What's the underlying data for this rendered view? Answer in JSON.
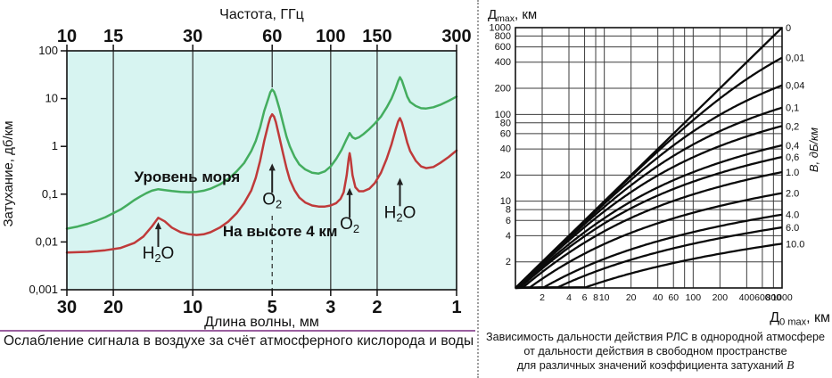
{
  "page": {
    "background": "#ffffff",
    "panel_divider_color": "#9e9e9e",
    "caption_rule_color": "#9a5f9f"
  },
  "left_chart": {
    "caption": "Ослабление сигнала в воздухе за счёт атмосферного кислорода и воды"
  },
  "right_chart": {
    "caption_lines": [
      "Зависимость дальности действия РЛС в однородной атмосфере",
      "от дальности действия в свободном пространстве",
      "для различных значений коэффициента затуханий"
    ],
    "caption_italic_suffix": "В"
  },
  "chart_data": [
    {
      "id": "atmospheric_attenuation",
      "type": "line",
      "plot_bg": "#d7f4f1",
      "grid_color": "#2a2a2a",
      "axis_color": "#111111",
      "x_top_axis": {
        "label": "Частота, ГГц",
        "scale": "log",
        "range": [
          10,
          300
        ],
        "ticks": [
          10,
          15,
          30,
          60,
          100,
          150,
          300
        ]
      },
      "x_bottom_axis": {
        "label": "Длина волны, мм",
        "ticks": [
          30,
          20,
          10,
          5,
          3,
          2,
          1
        ]
      },
      "y_axis": {
        "label": "Затухание, дб/км",
        "scale": "log",
        "range": [
          0.001,
          100
        ],
        "ticks": [
          100,
          10,
          1,
          0.1,
          0.01,
          0.001
        ],
        "tick_labels": [
          "100",
          "10",
          "1",
          "0,1",
          "0,01",
          "0,001"
        ]
      },
      "series": [
        {
          "name": "Уровень моря",
          "color": "#44ad5f",
          "points": [
            [
              10,
              0.019
            ],
            [
              11,
              0.021
            ],
            [
              12,
              0.024
            ],
            [
              13,
              0.028
            ],
            [
              14,
              0.033
            ],
            [
              15,
              0.04
            ],
            [
              16,
              0.048
            ],
            [
              17,
              0.06
            ],
            [
              18,
              0.075
            ],
            [
              19,
              0.09
            ],
            [
              20,
              0.105
            ],
            [
              21,
              0.118
            ],
            [
              22.2,
              0.127
            ],
            [
              23.5,
              0.122
            ],
            [
              25,
              0.116
            ],
            [
              27,
              0.112
            ],
            [
              29,
              0.11
            ],
            [
              31,
              0.112
            ],
            [
              33,
              0.118
            ],
            [
              35,
              0.13
            ],
            [
              38,
              0.16
            ],
            [
              41,
              0.21
            ],
            [
              44,
              0.3
            ],
            [
              47,
              0.45
            ],
            [
              50,
              0.8
            ],
            [
              52,
              1.3
            ],
            [
              54,
              2.5
            ],
            [
              56,
              5.5
            ],
            [
              58,
              10
            ],
            [
              59,
              13.5
            ],
            [
              60,
              15.5
            ],
            [
              61,
              14
            ],
            [
              62,
              11
            ],
            [
              64,
              6
            ],
            [
              66,
              3
            ],
            [
              68,
              1.6
            ],
            [
              70,
              1.0
            ],
            [
              73,
              0.6
            ],
            [
              76,
              0.42
            ],
            [
              80,
              0.33
            ],
            [
              85,
              0.28
            ],
            [
              90,
              0.27
            ],
            [
              95,
              0.3
            ],
            [
              100,
              0.38
            ],
            [
              105,
              0.55
            ],
            [
              110,
              0.85
            ],
            [
              114,
              1.3
            ],
            [
              118,
              1.9
            ],
            [
              121,
              1.55
            ],
            [
              124,
              1.45
            ],
            [
              128,
              1.55
            ],
            [
              133,
              1.8
            ],
            [
              140,
              2.3
            ],
            [
              147,
              3.0
            ],
            [
              155,
              4.2
            ],
            [
              163,
              6.5
            ],
            [
              170,
              10
            ],
            [
              176,
              16
            ],
            [
              180,
              23
            ],
            [
              183,
              28
            ],
            [
              186,
              24
            ],
            [
              190,
              17
            ],
            [
              195,
              11
            ],
            [
              200,
              8.5
            ],
            [
              210,
              7.0
            ],
            [
              220,
              6.3
            ],
            [
              230,
              6.2
            ],
            [
              245,
              6.6
            ],
            [
              260,
              7.4
            ],
            [
              280,
              9.0
            ],
            [
              300,
              11
            ]
          ]
        },
        {
          "name": "На высоте 4 км",
          "color": "#bf3a3a",
          "points": [
            [
              10,
              0.006
            ],
            [
              12,
              0.0062
            ],
            [
              14,
              0.0067
            ],
            [
              16,
              0.0075
            ],
            [
              18,
              0.0095
            ],
            [
              19.5,
              0.013
            ],
            [
              21,
              0.021
            ],
            [
              22.2,
              0.032
            ],
            [
              23.5,
              0.027
            ],
            [
              25,
              0.02
            ],
            [
              27,
              0.016
            ],
            [
              29,
              0.0145
            ],
            [
              31,
              0.014
            ],
            [
              33,
              0.0145
            ],
            [
              35,
              0.016
            ],
            [
              38,
              0.02
            ],
            [
              41,
              0.027
            ],
            [
              44,
              0.04
            ],
            [
              47,
              0.065
            ],
            [
              50,
              0.12
            ],
            [
              52,
              0.22
            ],
            [
              54,
              0.5
            ],
            [
              56,
              1.3
            ],
            [
              58,
              2.9
            ],
            [
              59,
              4.0
            ],
            [
              60,
              4.7
            ],
            [
              61,
              4.2
            ],
            [
              62,
              3.2
            ],
            [
              64,
              1.5
            ],
            [
              66,
              0.7
            ],
            [
              68,
              0.35
            ],
            [
              70,
              0.2
            ],
            [
              73,
              0.12
            ],
            [
              76,
              0.085
            ],
            [
              80,
              0.067
            ],
            [
              85,
              0.058
            ],
            [
              90,
              0.055
            ],
            [
              95,
              0.055
            ],
            [
              100,
              0.058
            ],
            [
              105,
              0.065
            ],
            [
              109,
              0.08
            ],
            [
              112,
              0.11
            ],
            [
              115,
              0.25
            ],
            [
              117,
              0.55
            ],
            [
              118,
              0.72
            ],
            [
              119,
              0.55
            ],
            [
              121,
              0.25
            ],
            [
              124,
              0.14
            ],
            [
              128,
              0.115
            ],
            [
              133,
              0.115
            ],
            [
              140,
              0.13
            ],
            [
              147,
              0.17
            ],
            [
              155,
              0.28
            ],
            [
              163,
              0.55
            ],
            [
              170,
              1.1
            ],
            [
              176,
              2.2
            ],
            [
              180,
              3.3
            ],
            [
              183,
              3.9
            ],
            [
              186,
              3.2
            ],
            [
              190,
              2.1
            ],
            [
              195,
              1.2
            ],
            [
              200,
              0.8
            ],
            [
              210,
              0.5
            ],
            [
              220,
              0.38
            ],
            [
              230,
              0.35
            ],
            [
              245,
              0.37
            ],
            [
              260,
              0.45
            ],
            [
              280,
              0.6
            ],
            [
              300,
              0.82
            ]
          ]
        }
      ],
      "series_labels": [
        {
          "text": "Уровень моря",
          "f": 18,
          "v": 0.179
        },
        {
          "text": "На высоте 4 км",
          "f": 39,
          "v": 0.0131
        }
      ],
      "annotations": [
        {
          "formula": "H2O",
          "f": 22.2,
          "tip_v": 0.025,
          "label_v": 0.0045,
          "dashed_to_axis": false
        },
        {
          "formula": "O2",
          "f": 60,
          "tip_v": 0.42,
          "label_v": 0.061,
          "dashed_to_axis": true
        },
        {
          "formula": "O2",
          "f": 118,
          "tip_v": 0.13,
          "label_v": 0.0184,
          "dashed_to_axis": false
        },
        {
          "formula": "H2O",
          "f": 183,
          "tip_v": 0.21,
          "label_v": 0.032,
          "dashed_to_axis": false
        }
      ]
    },
    {
      "id": "radar_range_vs_freespace_range",
      "type": "line",
      "grid_color": "#3d3d3d",
      "axis_color": "#111111",
      "curve_color": "#0a0a0a",
      "x_axis": {
        "label_main": "Д",
        "label_sub": "0 max",
        "label_rest": ", км",
        "scale": "log",
        "range": [
          1,
          1000
        ],
        "tick_labels": [
          "2",
          "4",
          "6",
          "8",
          "10",
          "20",
          "40",
          "60",
          "100",
          "200",
          "400",
          "600",
          "800",
          "1000"
        ],
        "unlabeled_grid": [
          80
        ]
      },
      "y_axis": {
        "label_main": "Д",
        "label_sub": "max",
        "label_rest": ", км",
        "scale": "log",
        "range": [
          1,
          1000
        ],
        "tick_labels": [
          "2",
          "4",
          "6",
          "8",
          "10",
          "20",
          "40",
          "60",
          "80",
          "100",
          "200",
          "400",
          "600",
          "800",
          "1000"
        ]
      },
      "b_axis_label": "В, дБ/км",
      "family": {
        "relation": "D0max = Dmax * 10^(B*Dmax/13)",
        "b_values": [
          0,
          0.01,
          0.04,
          0.1,
          0.2,
          0.4,
          0.6,
          1.0,
          2.0,
          4.0,
          6.0,
          10.0
        ],
        "b_labels": [
          "0",
          "0,01",
          "0,04",
          "0,1",
          "0,2",
          "0,4",
          "0,6",
          "1.0",
          "2.0",
          "4.0",
          "6.0",
          "10.0"
        ]
      }
    }
  ]
}
